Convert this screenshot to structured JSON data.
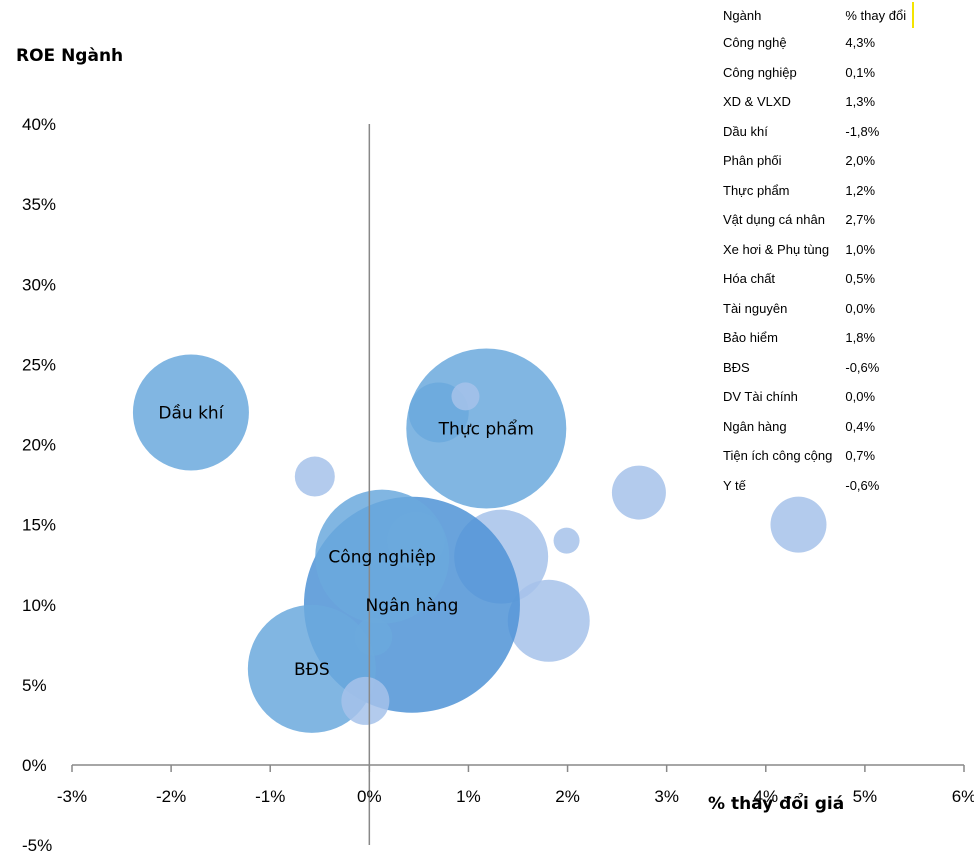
{
  "chart_data": {
    "type": "scatter",
    "xlabel": "% thay đổi giá",
    "ylabel": "ROE Ngành",
    "xlim": [
      -3,
      6
    ],
    "ylim": [
      -5,
      40
    ],
    "x_ticks": [
      "-3%",
      "-2%",
      "-1%",
      "0%",
      "1%",
      "2%",
      "3%",
      "4%",
      "5%",
      "6%"
    ],
    "y_ticks": [
      "-5%",
      "0%",
      "5%",
      "10%",
      "15%",
      "20%",
      "25%",
      "30%",
      "35%",
      "40%"
    ],
    "bubbles": [
      {
        "label": "Dầu khí",
        "x": -1.8,
        "y": 22,
        "size": 58,
        "shade": "mid"
      },
      {
        "label": "Thực phẩm",
        "x": 1.18,
        "y": 21,
        "size": 80,
        "shade": "mid"
      },
      {
        "label": "",
        "x": 0.7,
        "y": 22,
        "size": 30,
        "shade": "mid"
      },
      {
        "label": "",
        "x": 0.97,
        "y": 23,
        "size": 14,
        "shade": "light"
      },
      {
        "label": "",
        "x": -0.55,
        "y": 18,
        "size": 20,
        "shade": "light"
      },
      {
        "label": "",
        "x": 2.72,
        "y": 17,
        "size": 27,
        "shade": "light"
      },
      {
        "label": "",
        "x": 4.33,
        "y": 15,
        "size": 28,
        "shade": "light"
      },
      {
        "label": "",
        "x": 1.33,
        "y": 13,
        "size": 47,
        "shade": "light"
      },
      {
        "label": "",
        "x": 1.99,
        "y": 14,
        "size": 13,
        "shade": "light"
      },
      {
        "label": "",
        "x": 1.81,
        "y": 9,
        "size": 41,
        "shade": "light"
      },
      {
        "label": "Ngân hàng",
        "x": 0.43,
        "y": 10,
        "size": 108,
        "shade": "dark"
      },
      {
        "label": "Công nghiệp",
        "x": 0.13,
        "y": 13,
        "size": 67,
        "shade": "mid"
      },
      {
        "label": "",
        "x": 0.47,
        "y": 14,
        "size": 29,
        "shade": "mid"
      },
      {
        "label": "",
        "x": 0.04,
        "y": 8,
        "size": 19,
        "shade": "mid"
      },
      {
        "label": "BĐS",
        "x": -0.58,
        "y": 6,
        "size": 64,
        "shade": "mid"
      },
      {
        "label": "",
        "x": -0.04,
        "y": 4,
        "size": 24,
        "shade": "light"
      }
    ],
    "legend_table": {
      "headers": [
        "Ngành",
        "% thay đổi"
      ],
      "rows": [
        [
          "Công nghệ",
          "4,3%"
        ],
        [
          "Công nghiệp",
          "0,1%"
        ],
        [
          "XD & VLXD",
          "1,3%"
        ],
        [
          "Dầu khí",
          "-1,8%"
        ],
        [
          "Phân phối",
          "2,0%"
        ],
        [
          "Thực phẩm",
          "1,2%"
        ],
        [
          "Vật dụng cá nhân",
          "2,7%"
        ],
        [
          "Xe hơi & Phụ tùng",
          "1,0%"
        ],
        [
          "Hóa chất",
          "0,5%"
        ],
        [
          "Tài nguyên",
          "0,0%"
        ],
        [
          "Bảo hiểm",
          "1,8%"
        ],
        [
          "BĐS",
          "-0,6%"
        ],
        [
          "DV Tài chính",
          "0,0%"
        ],
        [
          "Ngân hàng",
          "0,4%"
        ],
        [
          "Tiện ích công cộng",
          "0,7%"
        ],
        [
          "Y tế",
          "-0,6%"
        ]
      ]
    },
    "colors": {
      "light": "#a6c2ea",
      "mid": "#6ba9dd",
      "dark": "#4f93d6",
      "axis": "#888888"
    }
  }
}
